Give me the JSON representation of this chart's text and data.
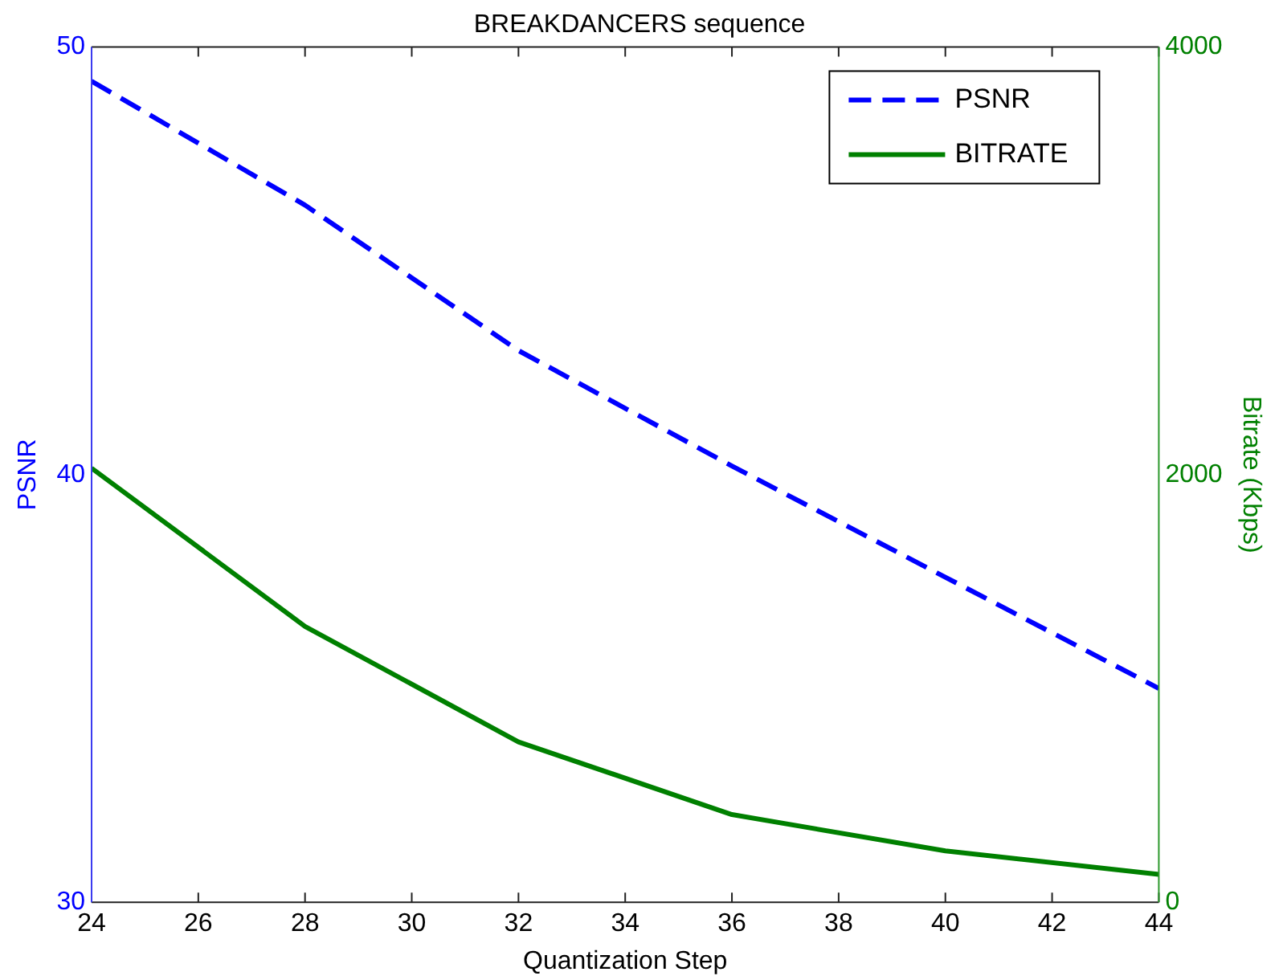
{
  "chart_data": {
    "type": "line",
    "title": "BREAKDANCERS sequence",
    "xlabel": "Quantization Step",
    "ylabel": "PSNR",
    "y2label": "Bitrate (Kbps)",
    "x": [
      24,
      28,
      32,
      36,
      40,
      44
    ],
    "xlim": [
      24,
      44
    ],
    "xticks": [
      24,
      26,
      28,
      30,
      32,
      34,
      36,
      38,
      40,
      42,
      44
    ],
    "ylim": [
      30,
      50
    ],
    "yticks": [
      30,
      40,
      50
    ],
    "y2lim": [
      0,
      4000
    ],
    "y2ticks": [
      0,
      2000,
      4000
    ],
    "series": [
      {
        "name": "PSNR",
        "color": "#0000ff",
        "line_style": "dashed",
        "values": [
          49.2,
          46.3,
          42.9,
          40.2,
          37.6,
          35.0
        ]
      },
      {
        "name": "BITRATE",
        "color": "#008000",
        "line_style": "solid",
        "axis": "y2",
        "values": [
          2030,
          1290,
          750,
          410,
          240,
          130
        ]
      }
    ],
    "legend": "top right",
    "grid": false,
    "marker": "none"
  }
}
